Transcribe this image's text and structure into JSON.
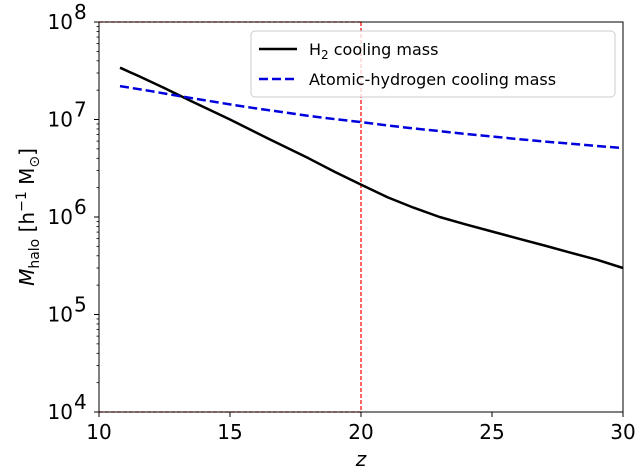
{
  "chart_data": {
    "type": "line",
    "xlabel": "z",
    "ylabel": "M_halo [h^-1 M_sun]",
    "ylabel_parts": {
      "symbol": "M",
      "symbol_sub": "halo",
      "bracket_open": " [h",
      "exp": "−1",
      "unit": " M",
      "unit_sub": "⊙",
      "bracket_close": "]"
    },
    "xlim": [
      10,
      30
    ],
    "ylim": [
      10000,
      100000000
    ],
    "yscale": "log",
    "x_ticks": [
      10,
      15,
      20,
      25,
      30
    ],
    "y_ticks": [
      {
        "value": 10000,
        "base": "10",
        "exp": "4"
      },
      {
        "value": 100000,
        "base": "10",
        "exp": "5"
      },
      {
        "value": 1000000,
        "base": "10",
        "exp": "6"
      },
      {
        "value": 10000000,
        "base": "10",
        "exp": "7"
      },
      {
        "value": 100000000,
        "base": "10",
        "exp": "8"
      }
    ],
    "grid": false,
    "legend_position": "top-right",
    "series": [
      {
        "name": "H2 cooling mass",
        "legend_parts": {
          "pre": "H",
          "sub": "2",
          "post": " cooling mass"
        },
        "color": "#000000",
        "dash": "solid",
        "x": [
          10.8,
          11.5,
          12.5,
          13.5,
          15,
          16.5,
          18,
          19,
          20,
          21,
          22,
          23,
          24,
          25,
          26,
          27,
          28,
          29,
          30
        ],
        "y": [
          34000000,
          28000000,
          21000000,
          15500000,
          10000000,
          6300000,
          4000000,
          2900000,
          2150000,
          1600000,
          1250000,
          1000000,
          840000,
          710000,
          600000,
          510000,
          430000,
          365000,
          300000
        ]
      },
      {
        "name": "Atomic-hydrogen cooling mass",
        "color": "#0000dd",
        "dash": "dashed",
        "x": [
          10.8,
          12,
          13,
          14,
          15,
          16,
          17,
          18,
          19,
          20,
          21,
          22,
          23,
          24,
          25,
          26,
          27,
          28,
          29,
          30
        ],
        "y": [
          22000000,
          19500000,
          17500000,
          15800000,
          14300000,
          13000000,
          11900000,
          10900000,
          10100000,
          9400000,
          8700000,
          8100000,
          7600000,
          7100000,
          6700000,
          6300000,
          5950000,
          5650000,
          5350000,
          5100000
        ]
      }
    ],
    "reference_lines": [
      {
        "orientation": "vertical",
        "value": 20,
        "color": "#ff0000",
        "style": "dashed"
      },
      {
        "orientation": "horizontal",
        "value": 100000000,
        "color": "#ff0000",
        "style": "dashed"
      },
      {
        "orientation": "horizontal",
        "value": 10000,
        "color": "#ff0000",
        "style": "dashed"
      }
    ]
  }
}
